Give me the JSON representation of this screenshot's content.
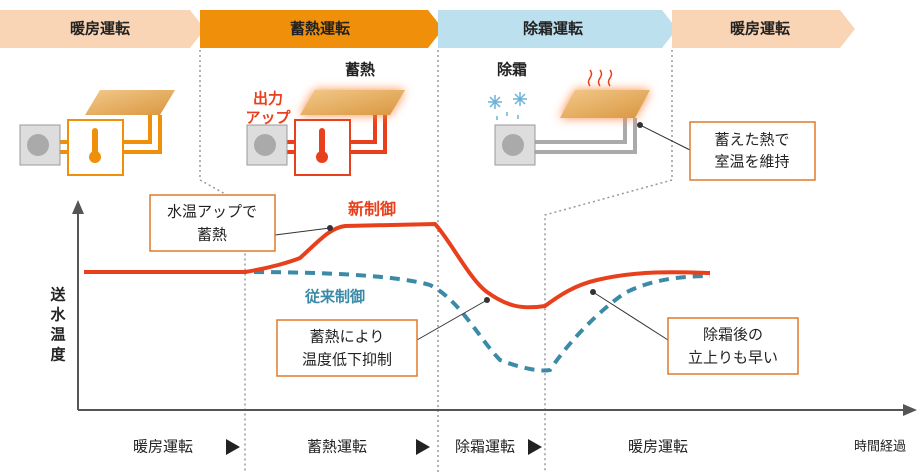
{
  "banner": [
    "暖房運転",
    "蓄熱運転",
    "除霜運転",
    "暖房運転"
  ],
  "images": {
    "boost_label": [
      "出力",
      "アップ"
    ],
    "storage_label": "蓄熱",
    "defrost_label": "除霜"
  },
  "callouts": {
    "maintain": [
      "蓄えた熱で",
      "室温を維持"
    ],
    "water_up": [
      "水温アップで",
      "蓄熱"
    ],
    "suppress": [
      "蓄熱により",
      "温度低下抑制"
    ],
    "quick_rise": [
      "除霜後の",
      "立上りも早い"
    ]
  },
  "legend": {
    "new": "新制御",
    "conventional": "従来制御"
  },
  "axis": {
    "y_label": [
      "送",
      "水",
      "温",
      "度"
    ],
    "x_label": "時間経過"
  },
  "phases": [
    "暖房運転",
    "蓄熱運転",
    "除霜運転",
    "暖房運転"
  ]
}
